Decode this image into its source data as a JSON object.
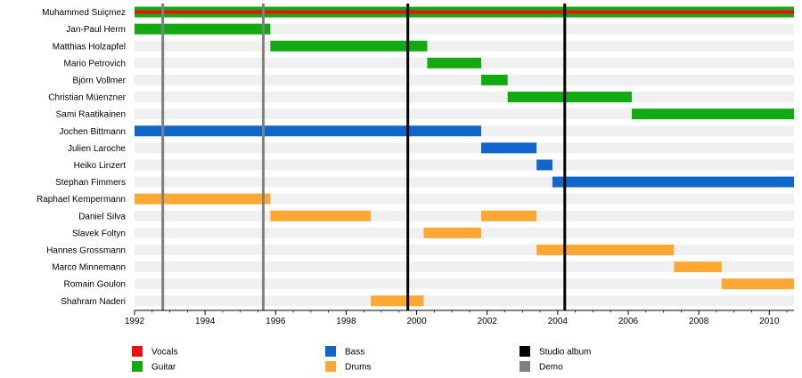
{
  "chart_data": {
    "type": "timeline",
    "title": "",
    "xlabel": "",
    "ylabel": "",
    "xlim": [
      1992,
      2010.7
    ],
    "x_ticks": [
      "1992",
      "1994",
      "1996",
      "1998",
      "2000",
      "2002",
      "2004",
      "2006",
      "2008",
      "2010"
    ],
    "members": [
      "Muhammed Suiçmez",
      "Jan-Paul Herm",
      "Matthias Holzapfel",
      "Mario Petrovich",
      "Björn Vollmer",
      "Christian Müenzner",
      "Sami Raatikainen",
      "Jochen Bittmann",
      "Julien Laroche",
      "Heiko Linzert",
      "Stephan Fimmers",
      "Raphael Kempermann",
      "Daniel Silva",
      "Slavek Foltyn",
      "Hannes Grossmann",
      "Marco Minnemann",
      "Romain Goulon",
      "Shahram Naderi"
    ],
    "roles": [
      {
        "name": "Vocals",
        "color": "#ee1111"
      },
      {
        "name": "Guitar",
        "color": "#11aa11"
      },
      {
        "name": "Bass",
        "color": "#1166cc"
      },
      {
        "name": "Drums",
        "color": "#ffa733"
      }
    ],
    "bars": [
      {
        "member": 0,
        "role": "Guitar",
        "start": 1992.0,
        "end": 2010.7
      },
      {
        "member": 0,
        "role": "Vocals",
        "start": 1992.0,
        "end": 2010.7,
        "stripe": true
      },
      {
        "member": 1,
        "role": "Guitar",
        "start": 1992.0,
        "end": 1995.85
      },
      {
        "member": 2,
        "role": "Guitar",
        "start": 1995.85,
        "end": 2000.3
      },
      {
        "member": 3,
        "role": "Guitar",
        "start": 2000.3,
        "end": 2001.83
      },
      {
        "member": 4,
        "role": "Guitar",
        "start": 2001.83,
        "end": 2002.58
      },
      {
        "member": 5,
        "role": "Guitar",
        "start": 2002.58,
        "end": 2006.1
      },
      {
        "member": 6,
        "role": "Guitar",
        "start": 2006.1,
        "end": 2010.7
      },
      {
        "member": 7,
        "role": "Bass",
        "start": 1992.0,
        "end": 2001.83
      },
      {
        "member": 8,
        "role": "Bass",
        "start": 2001.83,
        "end": 2003.4
      },
      {
        "member": 9,
        "role": "Bass",
        "start": 2003.4,
        "end": 2003.85
      },
      {
        "member": 10,
        "role": "Bass",
        "start": 2003.85,
        "end": 2010.7
      },
      {
        "member": 11,
        "role": "Drums",
        "start": 1992.0,
        "end": 1995.85
      },
      {
        "member": 12,
        "role": "Drums",
        "start": 1995.85,
        "end": 1998.7
      },
      {
        "member": 12,
        "role": "Drums",
        "start": 2001.83,
        "end": 2003.4
      },
      {
        "member": 13,
        "role": "Drums",
        "start": 2000.2,
        "end": 2001.83
      },
      {
        "member": 14,
        "role": "Drums",
        "start": 2003.4,
        "end": 2007.3
      },
      {
        "member": 15,
        "role": "Drums",
        "start": 2007.3,
        "end": 2008.65
      },
      {
        "member": 16,
        "role": "Drums",
        "start": 2008.65,
        "end": 2010.7
      },
      {
        "member": 17,
        "role": "Drums",
        "start": 1998.7,
        "end": 2000.2
      }
    ],
    "events": [
      {
        "type": "Demo",
        "year": 1992.8,
        "color": "#808080"
      },
      {
        "type": "Demo",
        "year": 1995.65,
        "color": "#808080"
      },
      {
        "type": "Studio album",
        "year": 1999.75,
        "color": "#000000"
      },
      {
        "type": "Studio album",
        "year": 2004.2,
        "color": "#000000"
      }
    ],
    "legend": [
      {
        "label": "Vocals",
        "color": "#ee1111"
      },
      {
        "label": "Guitar",
        "color": "#11aa11"
      },
      {
        "label": "Bass",
        "color": "#1166cc"
      },
      {
        "label": "Drums",
        "color": "#ffa733"
      },
      {
        "label": "Studio album",
        "color": "#000000"
      },
      {
        "label": "Demo",
        "color": "#808080"
      }
    ],
    "legend_placement": "bottom",
    "row_background_color": "#f0f0f0"
  }
}
